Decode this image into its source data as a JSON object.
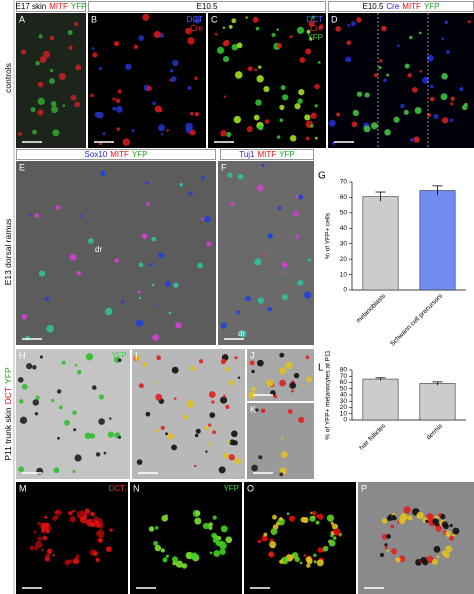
{
  "row_labels": [
    {
      "segments": [
        {
          "text": "controls",
          "color": "#000000"
        }
      ]
    },
    {
      "segments": [
        {
          "text": "E13 dorsal ramus",
          "color": "#000000"
        }
      ]
    },
    {
      "segments": [
        {
          "text": "P11 trunk skin",
          "color": "#000000"
        },
        {
          "text": "DCT",
          "color": "#e01010"
        },
        {
          "text": "YFP",
          "color": "#20a020"
        }
      ]
    }
  ],
  "headers": [
    {
      "segments": [
        {
          "text": "E17 skin",
          "color": "#000000"
        },
        {
          "text": "MITF",
          "color": "#e01010"
        },
        {
          "text": "YFP",
          "color": "#20a020"
        }
      ]
    },
    {
      "segments": [
        {
          "text": "E10.5",
          "color": "#000000"
        }
      ]
    },
    {
      "segments": [
        {
          "text": "E10.5",
          "color": "#000000"
        },
        {
          "text": "Cre",
          "color": "#2020e0"
        },
        {
          "text": "MITF",
          "color": "#e01010"
        },
        {
          "text": "YFP",
          "color": "#20a020"
        }
      ]
    },
    {
      "segments": [
        {
          "text": "Sox10",
          "color": "#2020e0"
        },
        {
          "text": "MITF",
          "color": "#e01010"
        },
        {
          "text": "YFP",
          "color": "#20a020"
        }
      ]
    },
    {
      "segments": [
        {
          "text": "Tuj1",
          "color": "#2020e0"
        },
        {
          "text": "MITF",
          "color": "#e01010"
        },
        {
          "text": "YFP",
          "color": "#20a020"
        }
      ]
    }
  ],
  "panels": [
    {
      "letter": "A"
    },
    {
      "letter": "B",
      "labels": [
        {
          "text": "DCT",
          "color": "#5060ff"
        },
        {
          "text": "Cre",
          "color": "#ff3030"
        }
      ]
    },
    {
      "letter": "C",
      "labels": [
        {
          "text": "DCT",
          "color": "#5060ff"
        },
        {
          "text": "Cre",
          "color": "#ff3030"
        },
        {
          "text": "YFP",
          "color": "#40d040"
        }
      ]
    },
    {
      "letter": "D"
    },
    {
      "letter": "E",
      "annotation": "dr"
    },
    {
      "letter": "F",
      "annotation": "dr"
    },
    {
      "letter": "H",
      "labels": [
        {
          "text": "YFP",
          "color": "#40d040"
        }
      ]
    },
    {
      "letter": "I"
    },
    {
      "letter": "J"
    },
    {
      "letter": "K"
    },
    {
      "letter": "M",
      "labels": [
        {
          "text": "DCT",
          "color": "#ff3030"
        }
      ]
    },
    {
      "letter": "N",
      "labels": [
        {
          "text": "YFP",
          "color": "#40d040"
        }
      ]
    },
    {
      "letter": "O"
    },
    {
      "letter": "P"
    }
  ],
  "charts": [
    {
      "type": "bar",
      "letter": "G",
      "ylabel": "% of YFP+ cells",
      "categories": [
        "melanoblasts",
        "Schwann cell precursors"
      ],
      "values": [
        60.5,
        64.5
      ],
      "errors": [
        3,
        3
      ],
      "colors": [
        "#cccccc",
        "#6f8ef0"
      ],
      "ylim": [
        0,
        70
      ],
      "yticks": [
        0,
        10,
        20,
        30,
        40,
        50,
        60,
        70
      ]
    },
    {
      "type": "bar",
      "letter": "L",
      "ylabel": "% of YFP+ melanocytes at P11",
      "categories": [
        "hair follicles",
        "dermis"
      ],
      "values": [
        65.5,
        58.5
      ],
      "errors": [
        2,
        2.5
      ],
      "colors": [
        "#cccccc",
        "#cccccc"
      ],
      "ylim": [
        0,
        80
      ],
      "yticks": [
        0,
        10,
        20,
        30,
        40,
        50,
        60,
        70,
        80
      ]
    }
  ]
}
